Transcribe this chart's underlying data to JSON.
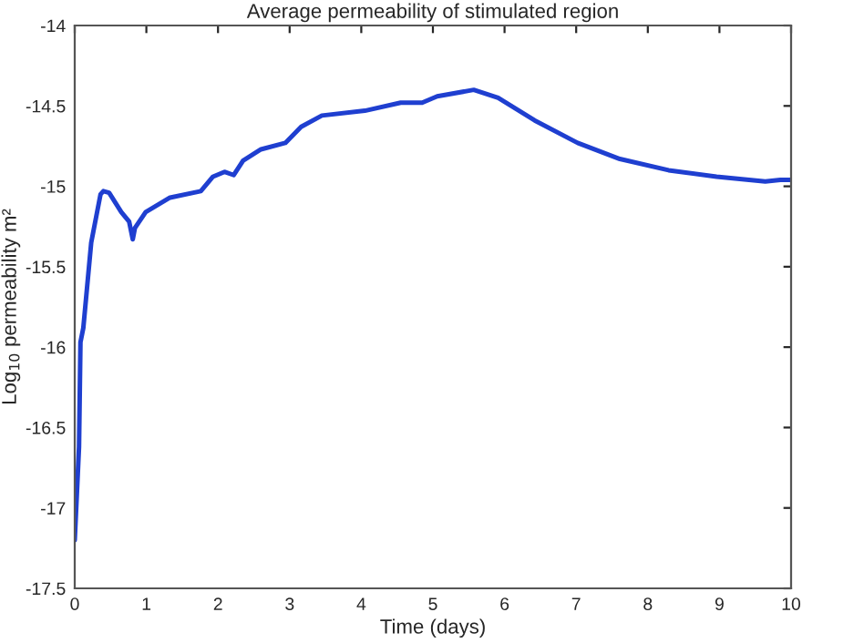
{
  "chart_data": {
    "type": "line",
    "title": "Average permeability of stimulated region",
    "xlabel": "Time (days)",
    "ylabel": "Log$_{10}$ permeability m²",
    "series": [
      {
        "color": "#1f3fd0",
        "x": [
          0,
          0.06,
          0.08,
          0.12,
          0.23,
          0.36,
          0.4,
          0.48,
          0.65,
          0.76,
          0.81,
          0.84,
          0.99,
          1.33,
          1.76,
          1.93,
          2.09,
          2.22,
          2.35,
          2.6,
          2.94,
          3.16,
          3.45,
          4.05,
          4.55,
          4.85,
          5.06,
          5.57,
          5.91,
          6.42,
          7.02,
          7.61,
          8.29,
          8.96,
          9.64,
          9.85,
          10
        ],
        "values": [
          -17.2,
          -16.62,
          -15.97,
          -15.88,
          -15.35,
          -15.05,
          -15.03,
          -15.04,
          -15.16,
          -15.22,
          -15.33,
          -15.26,
          -15.16,
          -15.07,
          -15.03,
          -14.94,
          -14.91,
          -14.93,
          -14.84,
          -14.77,
          -14.73,
          -14.63,
          -14.56,
          -14.53,
          -14.48,
          -14.48,
          -14.44,
          -14.4,
          -14.45,
          -14.59,
          -14.73,
          -14.83,
          -14.9,
          -14.94,
          -14.97,
          -14.96,
          -14.96
        ]
      }
    ],
    "xlim": [
      0,
      10
    ],
    "xticks": [
      0,
      1,
      2,
      3,
      4,
      5,
      6,
      7,
      8,
      9,
      10
    ],
    "ylim": [
      -17.5,
      -14
    ],
    "yticks": [
      {
        "value": -17.5,
        "label": "-17.5"
      },
      {
        "value": -17,
        "label": "-17"
      },
      {
        "value": -16.5,
        "label": "-16.5"
      },
      {
        "value": -16,
        "label": "-16"
      },
      {
        "value": -15.5,
        "label": "-15.5"
      },
      {
        "value": -15,
        "label": "-15"
      },
      {
        "value": -14.5,
        "label": "-14.5"
      },
      {
        "value": -14,
        "label": "-14"
      }
    ],
    "grid": false,
    "legend": false,
    "line_style": "solid",
    "marker": "none"
  }
}
